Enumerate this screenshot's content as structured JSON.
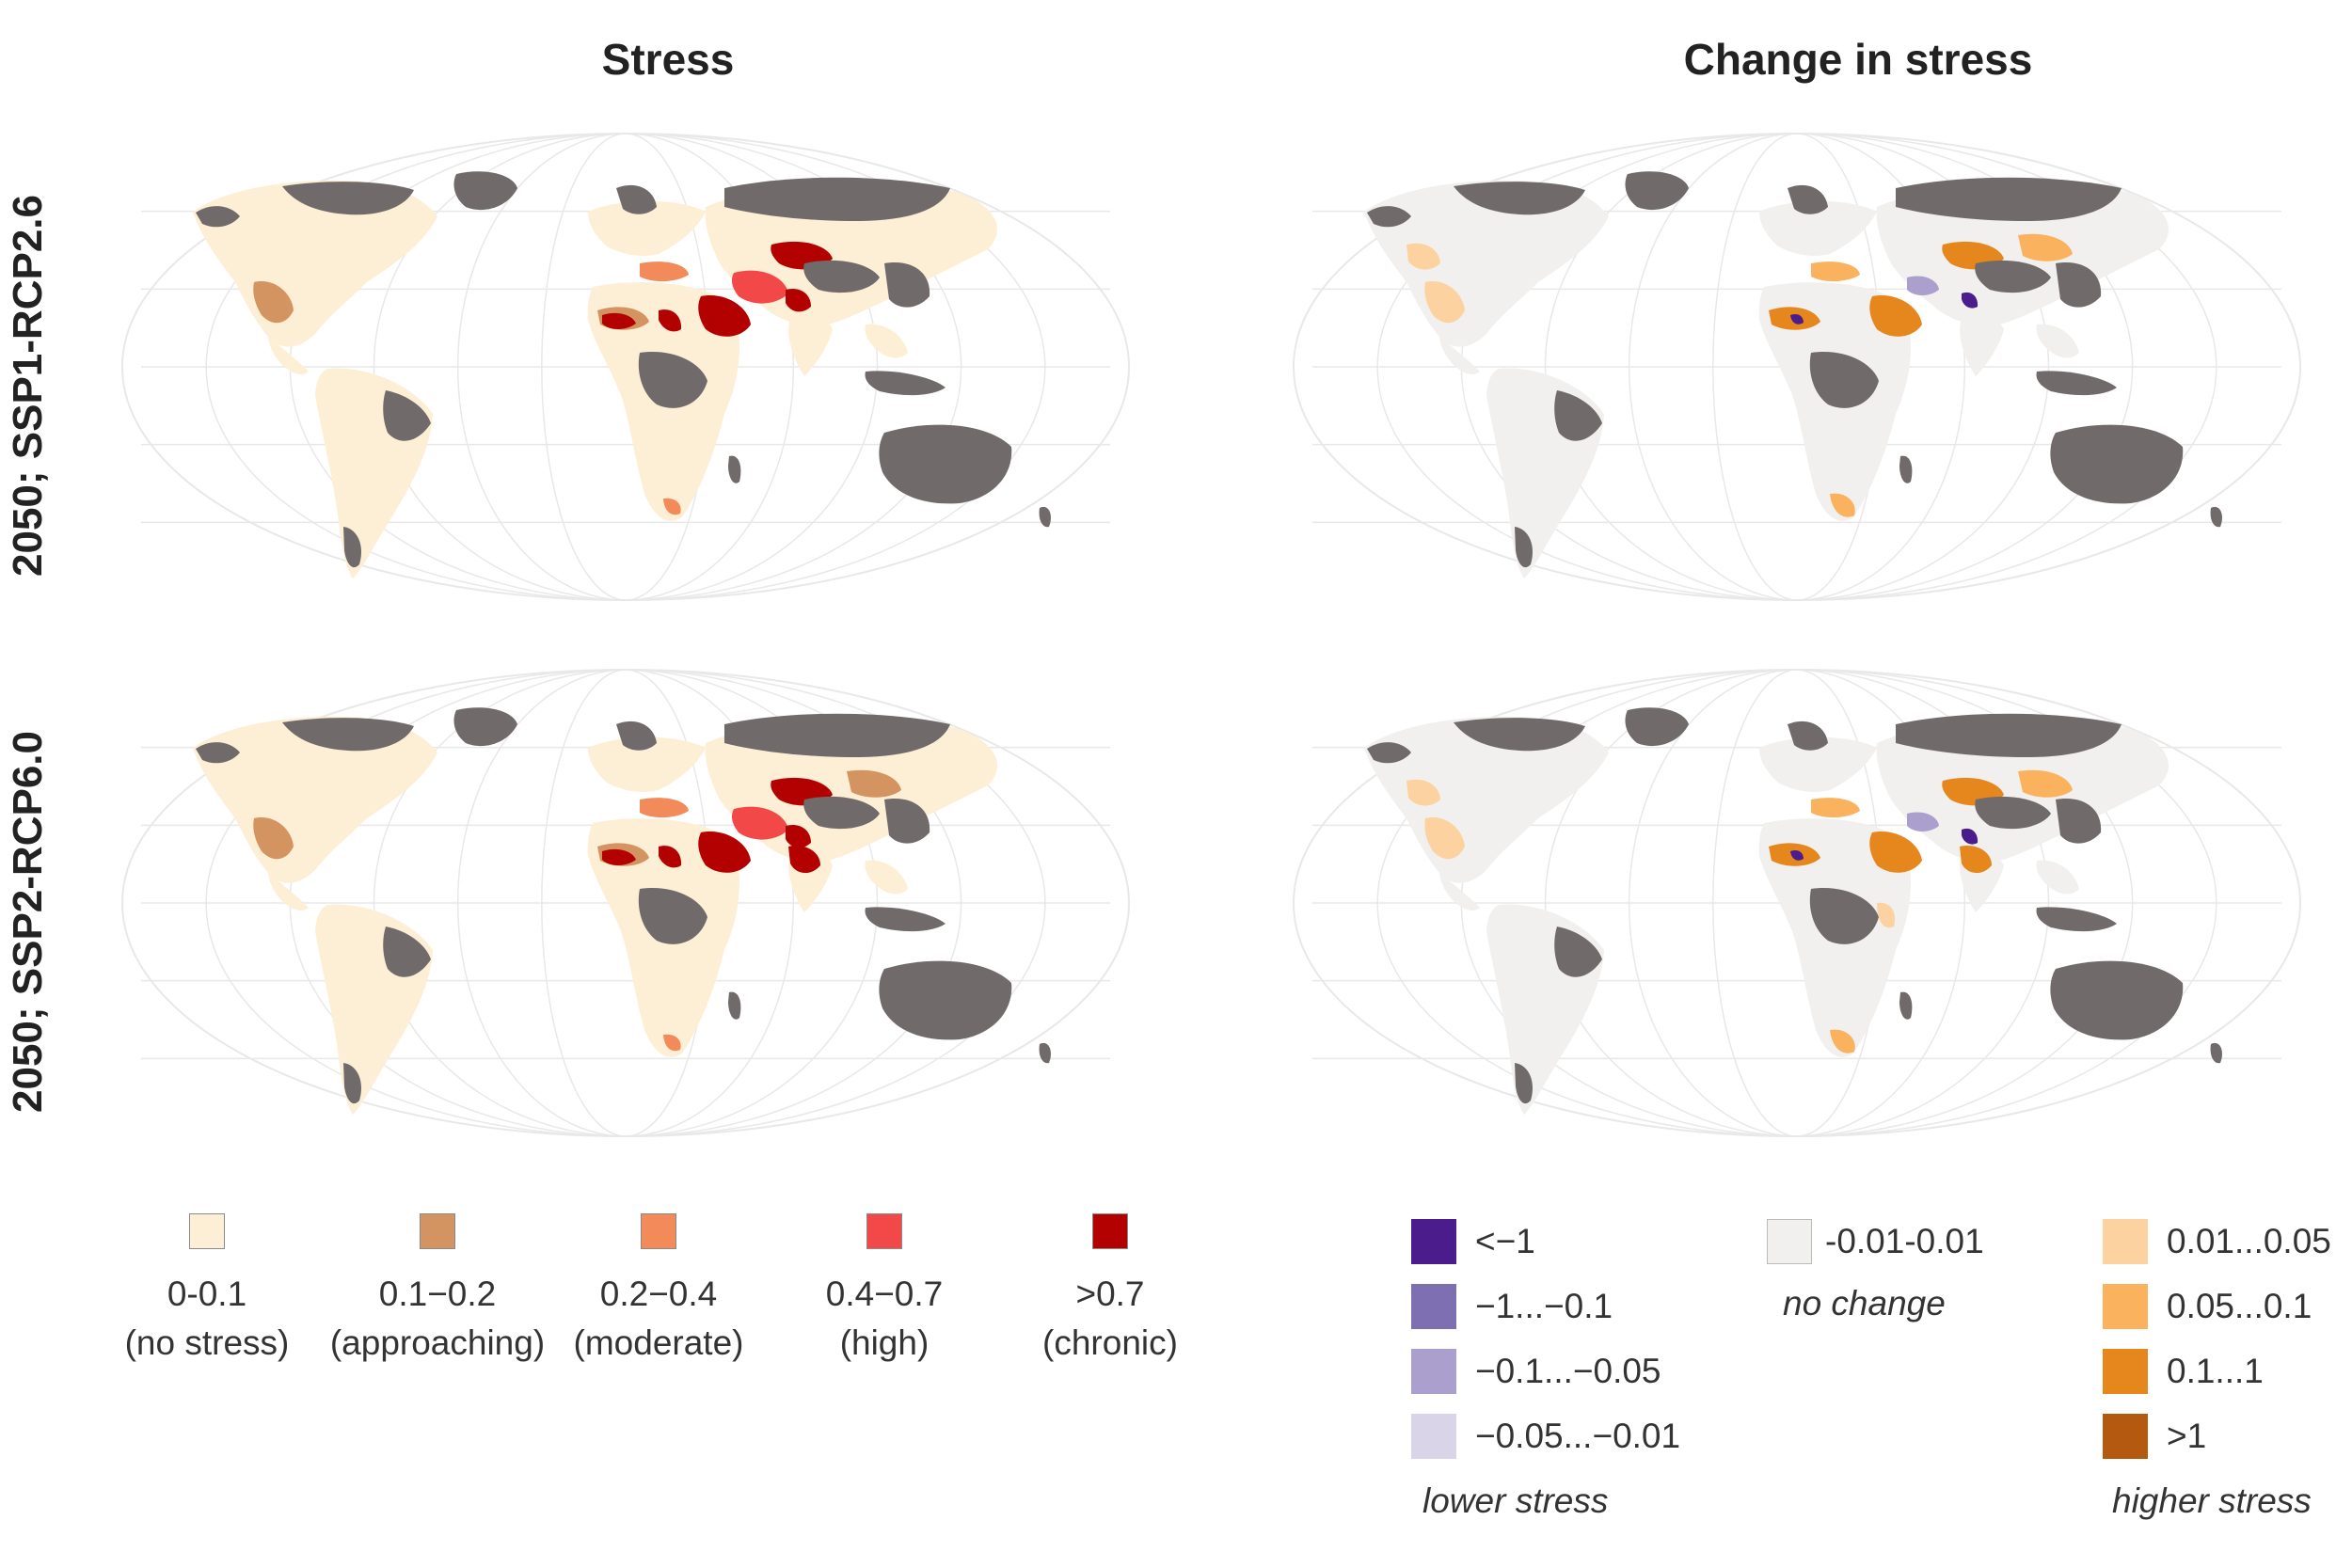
{
  "titles": {
    "stress": "Stress",
    "change": "Change in stress"
  },
  "rows": [
    {
      "label": "2050; SSP1-RCP2.6"
    },
    {
      "label": "2050; SSP2-RCP6.0"
    }
  ],
  "colors": {
    "land_no_data": "#716a6a",
    "graticule": "#e8e8e8",
    "stress_no": "#fdefd5",
    "stress_approaching": "#d49461",
    "stress_moderate": "#f28a5a",
    "stress_high": "#f24848",
    "stress_chronic": "#b30000",
    "change_none": "#f1f0ee",
    "change_lt_minus1": "#4b1d8c",
    "change_minus1_minus01": "#7d6fb2",
    "change_minus01_minus005": "#ab9fce",
    "change_minus005_minus001": "#d9d4e8",
    "change_001_005": "#fcd3a0",
    "change_005_01": "#fbb25f",
    "change_01_1": "#e6871e",
    "change_gt1": "#b45a10"
  },
  "stress_legend": [
    {
      "swatch_color": "#fdefd5",
      "range": "0-0.1",
      "desc": "(no stress)"
    },
    {
      "swatch_color": "#d49461",
      "range": "0.1−0.2",
      "desc": "(approaching)"
    },
    {
      "swatch_color": "#f28a5a",
      "range": "0.2−0.4",
      "desc": "(moderate)"
    },
    {
      "swatch_color": "#f24848",
      "range": "0.4−0.7",
      "desc": "(high)"
    },
    {
      "swatch_color": "#b30000",
      "range": ">0.7",
      "desc": "(chronic)"
    }
  ],
  "change_legend": {
    "lower": [
      {
        "swatch_color": "#4b1d8c",
        "label": "<−1"
      },
      {
        "swatch_color": "#7d6fb2",
        "label": "−1...−0.1"
      },
      {
        "swatch_color": "#ab9fce",
        "label": "−0.1...−0.05"
      },
      {
        "swatch_color": "#d9d4e8",
        "label": "−0.05...−0.01"
      }
    ],
    "neutral": {
      "swatch_color": "#f1f0ee",
      "label": "-0.01-0.01"
    },
    "higher": [
      {
        "swatch_color": "#fcd3a0",
        "label": "0.01...0.05"
      },
      {
        "swatch_color": "#fbb25f",
        "label": "0.05...0.1"
      },
      {
        "swatch_color": "#e6871e",
        "label": "0.1...1"
      },
      {
        "swatch_color": "#b45a10",
        "label": ">1"
      }
    ],
    "lower_note": "lower stress",
    "neutral_note": "no change",
    "higher_note": "higher stress"
  }
}
